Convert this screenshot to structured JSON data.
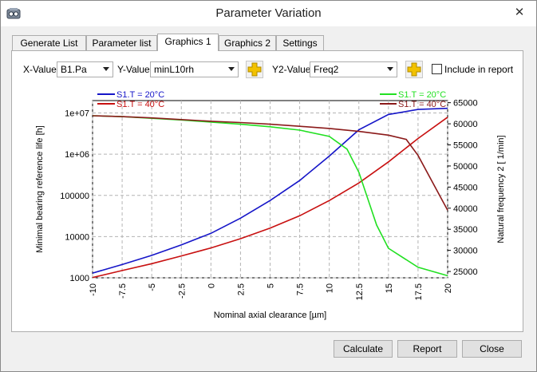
{
  "window": {
    "title": "Parameter Variation",
    "close": "✕"
  },
  "tabs": [
    "Generate List",
    "Parameter list",
    "Graphics 1",
    "Graphics 2",
    "Settings"
  ],
  "active_tab": 2,
  "controls": {
    "x_label": "X-Value",
    "x_value": "B1.Pa",
    "y_label": "Y-Value",
    "y_value": "minL10rh",
    "y2_label": "Y2-Value",
    "y2_value": "Freq2",
    "include_label": "Include in report",
    "include_checked": false
  },
  "buttons": {
    "calculate": "Calculate",
    "report": "Report",
    "close": "Close"
  },
  "colors": {
    "blue": "#1515c8",
    "red": "#c81010",
    "green": "#22e022",
    "darkred": "#8b1a1a",
    "accent_plus": "#f2c200"
  },
  "chart_data": {
    "type": "line",
    "xlabel": "Nominal axial clearance [µm]",
    "ylabel": "Minimal bearing reference life [h]",
    "y2label": "Natural frequency 2 [ 1/min]",
    "xlim": [
      -10,
      20
    ],
    "xticks": [
      "-10",
      "-7.5",
      "-5",
      "-2.5",
      "0",
      "2.5",
      "5",
      "7.5",
      "10",
      "12.5",
      "15",
      "17.5",
      "20"
    ],
    "yscale": "log",
    "ylim": [
      1000,
      20000000
    ],
    "yticks": [
      "1e+07",
      "1e+06",
      "100000",
      "10000",
      "1000"
    ],
    "y2lim": [
      23500,
      65500
    ],
    "y2ticks": [
      "65000",
      "60000",
      "55000",
      "50000",
      "45000",
      "40000",
      "35000",
      "30000",
      "25000"
    ],
    "grid": true,
    "legend_left": "top-left",
    "legend_right": "top-right",
    "series": [
      {
        "name": "S1.T = 20°C",
        "axis": "y",
        "color": "#1515c8",
        "x": [
          -10,
          -7.5,
          -5,
          -2.5,
          0,
          2.5,
          5,
          7.5,
          10,
          12.5,
          15,
          17.5,
          20
        ],
        "values": [
          1300,
          2100,
          3500,
          6300,
          12000,
          28000,
          75000,
          230000,
          900000,
          3900000,
          9200000,
          12200000,
          13000000
        ]
      },
      {
        "name": "S1.T = 40°C",
        "axis": "y",
        "color": "#c81010",
        "x": [
          -10,
          -7.5,
          -5,
          -2.5,
          0,
          2.5,
          5,
          7.5,
          10,
          12.5,
          15,
          17.5,
          20
        ],
        "values": [
          1020,
          1500,
          2200,
          3400,
          5300,
          8900,
          16000,
          32000,
          75000,
          200000,
          650000,
          2400000,
          7900000
        ]
      },
      {
        "name": "S1.T = 20°C",
        "axis": "y2",
        "color": "#22e022",
        "x": [
          -10,
          -7.5,
          -5,
          -2.5,
          0,
          2.5,
          5,
          7.5,
          10,
          11.5,
          12.5,
          14,
          15,
          17.5,
          20
        ],
        "values": [
          61900,
          61700,
          61300,
          60900,
          60400,
          59900,
          59300,
          58500,
          57000,
          54000,
          48500,
          36000,
          30500,
          26000,
          24000
        ]
      },
      {
        "name": "S1.T = 40°C",
        "axis": "y2",
        "color": "#8b1a1a",
        "x": [
          -10,
          -7.5,
          -5,
          -2.5,
          0,
          2.5,
          5,
          7.5,
          10,
          12.5,
          15,
          16.5,
          17.5,
          20
        ],
        "values": [
          61900,
          61700,
          61400,
          61000,
          60600,
          60300,
          59900,
          59400,
          58900,
          58200,
          57300,
          56300,
          52500,
          39500
        ]
      }
    ]
  }
}
